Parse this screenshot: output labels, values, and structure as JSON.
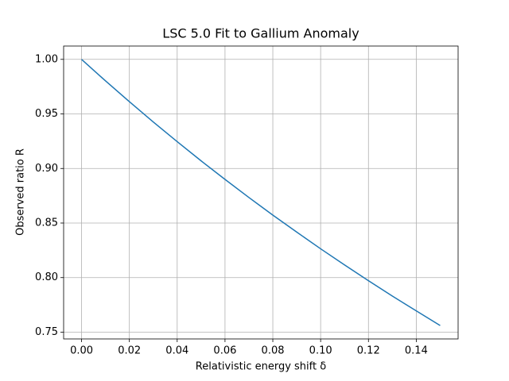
{
  "chart_data": {
    "type": "line",
    "title": "LSC 5.0 Fit to Gallium Anomaly",
    "xlabel": "Relativistic energy shift δ",
    "ylabel": "Observed ratio R",
    "x": [
      0,
      0.01,
      0.02,
      0.03,
      0.04,
      0.05,
      0.06,
      0.07,
      0.08,
      0.09,
      0.1,
      0.11,
      0.12,
      0.13,
      0.14,
      0.15
    ],
    "series": [
      {
        "color": "#1f77b4",
        "values": [
          1.0,
          0.9803,
          0.9612,
          0.9426,
          0.9246,
          0.907,
          0.89,
          0.8734,
          0.8573,
          0.8417,
          0.8264,
          0.8116,
          0.7972,
          0.7831,
          0.7695,
          0.7561
        ]
      }
    ],
    "xlim": [
      -0.0075,
      0.1575
    ],
    "ylim": [
      0.7438,
      1.0122
    ],
    "xticks": [
      {
        "value": 0,
        "label": "0.00"
      },
      {
        "value": 0.02,
        "label": "0.02"
      },
      {
        "value": 0.04,
        "label": "0.04"
      },
      {
        "value": 0.06,
        "label": "0.06"
      },
      {
        "value": 0.08,
        "label": "0.08"
      },
      {
        "value": 0.1,
        "label": "0.10"
      },
      {
        "value": 0.12,
        "label": "0.12"
      },
      {
        "value": 0.14,
        "label": "0.14"
      }
    ],
    "yticks": [
      {
        "value": 0.75,
        "label": "0.75"
      },
      {
        "value": 0.8,
        "label": "0.80"
      },
      {
        "value": 0.85,
        "label": "0.85"
      },
      {
        "value": 0.9,
        "label": "0.90"
      },
      {
        "value": 0.95,
        "label": "0.95"
      },
      {
        "value": 1.0,
        "label": "1.00"
      }
    ],
    "grid": true
  }
}
